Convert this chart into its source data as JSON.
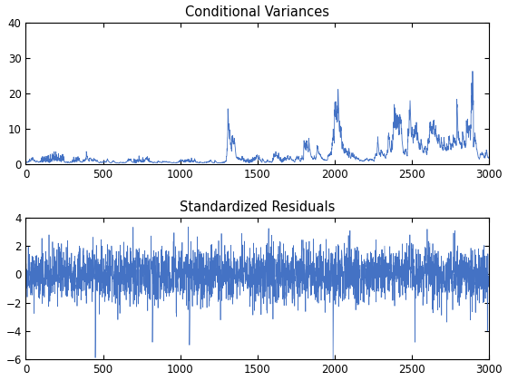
{
  "title1": "Conditional Variances",
  "title2": "Standardized Residuals",
  "xlim": [
    0,
    3000
  ],
  "ylim1": [
    0,
    40
  ],
  "ylim2": [
    -6,
    4
  ],
  "yticks1": [
    0,
    10,
    20,
    30,
    40
  ],
  "yticks2": [
    -6,
    -4,
    -2,
    0,
    2,
    4
  ],
  "xticks": [
    0,
    500,
    1000,
    1500,
    2000,
    2500,
    3000
  ],
  "line_color": "#4472C4",
  "bg_color": "#FFFFFF",
  "seed": 12345,
  "n": 3000
}
